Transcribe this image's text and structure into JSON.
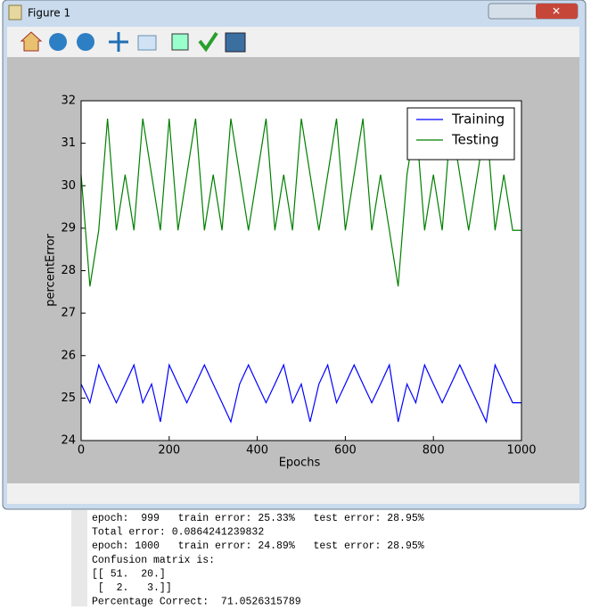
{
  "window": {
    "title": "Figure 1"
  },
  "chart_data": {
    "type": "line",
    "xlabel": "Epochs",
    "ylabel": "percentError",
    "x": [
      0,
      20,
      40,
      60,
      80,
      100,
      120,
      140,
      160,
      180,
      200,
      220,
      240,
      260,
      280,
      300,
      320,
      340,
      360,
      380,
      400,
      420,
      440,
      460,
      480,
      500,
      520,
      540,
      560,
      580,
      600,
      620,
      640,
      660,
      680,
      700,
      720,
      740,
      760,
      780,
      800,
      820,
      840,
      860,
      880,
      900,
      920,
      940,
      960,
      980,
      1000
    ],
    "series": [
      {
        "name": "Training",
        "color": "#0000ff",
        "values": [
          25.33,
          24.89,
          25.78,
          25.33,
          24.89,
          25.33,
          25.78,
          24.89,
          25.33,
          24.44,
          25.78,
          25.33,
          24.89,
          25.33,
          25.78,
          25.33,
          24.89,
          24.44,
          25.33,
          25.78,
          25.33,
          24.89,
          25.33,
          25.78,
          24.89,
          25.33,
          24.44,
          25.33,
          25.78,
          24.89,
          25.33,
          25.78,
          25.33,
          24.89,
          25.33,
          25.78,
          24.44,
          25.33,
          24.89,
          25.78,
          25.33,
          24.89,
          25.33,
          25.78,
          25.33,
          24.89,
          24.44,
          25.78,
          25.33,
          24.89,
          24.89
        ]
      },
      {
        "name": "Testing",
        "color": "#008000",
        "values": [
          30.26,
          27.63,
          28.95,
          31.58,
          28.95,
          30.26,
          28.95,
          31.58,
          30.26,
          28.95,
          31.58,
          28.95,
          30.26,
          31.58,
          28.95,
          30.26,
          28.95,
          31.58,
          30.26,
          28.95,
          30.26,
          31.58,
          28.95,
          30.26,
          28.95,
          31.58,
          30.26,
          28.95,
          30.26,
          31.58,
          28.95,
          30.26,
          31.58,
          28.95,
          30.26,
          28.95,
          27.63,
          30.26,
          31.58,
          28.95,
          30.26,
          28.95,
          31.58,
          30.26,
          28.95,
          30.26,
          31.58,
          28.95,
          30.26,
          28.95,
          28.95
        ]
      }
    ],
    "xlim": [
      0,
      1000
    ],
    "xticks": [
      0,
      200,
      400,
      600,
      800,
      1000
    ],
    "ylim": [
      24,
      32
    ],
    "yticks": [
      24,
      25,
      26,
      27,
      28,
      29,
      30,
      31,
      32
    ],
    "legend": "upper right"
  },
  "console": {
    "lines": [
      "epoch:  999   train error: 25.33%   test error: 28.95%",
      "Total error: 0.0864241239832",
      "epoch: 1000   train error: 24.89%   test error: 28.95%",
      "Confusion matrix is:",
      "[[ 51.  20.]",
      " [  2.   3.]]",
      "Percentage Correct:  71.0526315789"
    ]
  }
}
